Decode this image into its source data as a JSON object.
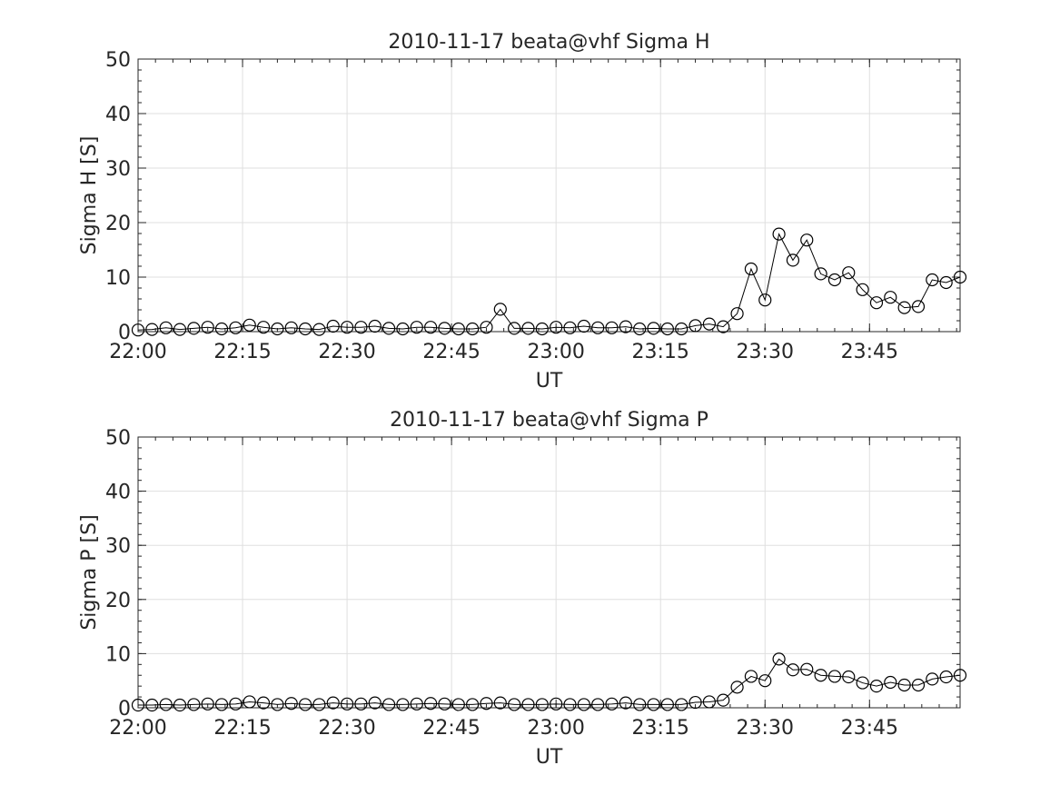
{
  "chart_data": [
    {
      "type": "line",
      "title": "2010-11-17  beata@vhf Sigma H",
      "xlabel": "UT",
      "ylabel": "Sigma H [S]",
      "xlim": [
        "22:00",
        "23:58"
      ],
      "ylim": [
        0,
        50
      ],
      "xticks": [
        "22:00",
        "22:15",
        "22:30",
        "22:45",
        "23:00",
        "23:15",
        "23:30",
        "23:45"
      ],
      "yticks": [
        0,
        10,
        20,
        30,
        40,
        50
      ],
      "grid": true,
      "marker": "open-circle",
      "line_color": "#000000",
      "x": [
        "22:00",
        "22:02",
        "22:04",
        "22:06",
        "22:08",
        "22:10",
        "22:12",
        "22:14",
        "22:16",
        "22:18",
        "22:20",
        "22:22",
        "22:24",
        "22:26",
        "22:28",
        "22:30",
        "22:32",
        "22:34",
        "22:36",
        "22:38",
        "22:40",
        "22:42",
        "22:44",
        "22:46",
        "22:48",
        "22:50",
        "22:52",
        "22:54",
        "22:56",
        "22:58",
        "23:00",
        "23:02",
        "23:04",
        "23:06",
        "23:08",
        "23:10",
        "23:12",
        "23:14",
        "23:16",
        "23:18",
        "23:20",
        "23:22",
        "23:24",
        "23:26",
        "23:28",
        "23:30",
        "23:32",
        "23:34",
        "23:36",
        "23:38",
        "23:40",
        "23:42",
        "23:44",
        "23:46",
        "23:48",
        "23:50",
        "23:52",
        "23:54",
        "23:56",
        "23:58"
      ],
      "series": [
        {
          "values": [
            0.3,
            0.4,
            0.7,
            0.4,
            0.6,
            0.8,
            0.5,
            0.7,
            1.2,
            0.8,
            0.5,
            0.7,
            0.5,
            0.4,
            1.0,
            0.8,
            0.8,
            1.0,
            0.6,
            0.5,
            0.8,
            0.8,
            0.6,
            0.5,
            0.5,
            0.8,
            4.1,
            0.6,
            0.6,
            0.5,
            0.8,
            0.7,
            1.0,
            0.7,
            0.7,
            0.9,
            0.5,
            0.6,
            0.5,
            0.5,
            1.1,
            1.4,
            0.9,
            3.3,
            11.5,
            5.8,
            17.9,
            13.1,
            16.8,
            10.6,
            9.5,
            10.8,
            7.7,
            5.3,
            6.3,
            4.4,
            4.6,
            9.5,
            9.0,
            10.0
          ]
        }
      ]
    },
    {
      "type": "line",
      "title": "2010-11-17  beata@vhf Sigma P",
      "xlabel": "UT",
      "ylabel": "Sigma P [S]",
      "xlim": [
        "22:00",
        "23:58"
      ],
      "ylim": [
        0,
        50
      ],
      "xticks": [
        "22:00",
        "22:15",
        "22:30",
        "22:45",
        "23:00",
        "23:15",
        "23:30",
        "23:45"
      ],
      "yticks": [
        0,
        10,
        20,
        30,
        40,
        50
      ],
      "grid": true,
      "marker": "open-circle",
      "line_color": "#000000",
      "x": [
        "22:00",
        "22:02",
        "22:04",
        "22:06",
        "22:08",
        "22:10",
        "22:12",
        "22:14",
        "22:16",
        "22:18",
        "22:20",
        "22:22",
        "22:24",
        "22:26",
        "22:28",
        "22:30",
        "22:32",
        "22:34",
        "22:36",
        "22:38",
        "22:40",
        "22:42",
        "22:44",
        "22:46",
        "22:48",
        "22:50",
        "22:52",
        "22:54",
        "22:56",
        "22:58",
        "23:00",
        "23:02",
        "23:04",
        "23:06",
        "23:08",
        "23:10",
        "23:12",
        "23:14",
        "23:16",
        "23:18",
        "23:20",
        "23:22",
        "23:24",
        "23:26",
        "23:28",
        "23:30",
        "23:32",
        "23:34",
        "23:36",
        "23:38",
        "23:40",
        "23:42",
        "23:44",
        "23:46",
        "23:48",
        "23:50",
        "23:52",
        "23:54",
        "23:56",
        "23:58"
      ],
      "series": [
        {
          "values": [
            0.5,
            0.5,
            0.6,
            0.5,
            0.6,
            0.7,
            0.6,
            0.7,
            1.1,
            0.9,
            0.6,
            0.8,
            0.6,
            0.6,
            0.9,
            0.7,
            0.7,
            0.9,
            0.6,
            0.6,
            0.7,
            0.8,
            0.7,
            0.6,
            0.6,
            0.8,
            0.9,
            0.6,
            0.6,
            0.6,
            0.7,
            0.6,
            0.6,
            0.6,
            0.7,
            0.9,
            0.6,
            0.6,
            0.6,
            0.6,
            1.0,
            1.1,
            1.4,
            3.8,
            5.8,
            5.0,
            9.0,
            7.0,
            7.1,
            6.0,
            5.8,
            5.7,
            4.6,
            4.0,
            4.7,
            4.2,
            4.2,
            5.3,
            5.7,
            6.0
          ]
        }
      ]
    }
  ]
}
